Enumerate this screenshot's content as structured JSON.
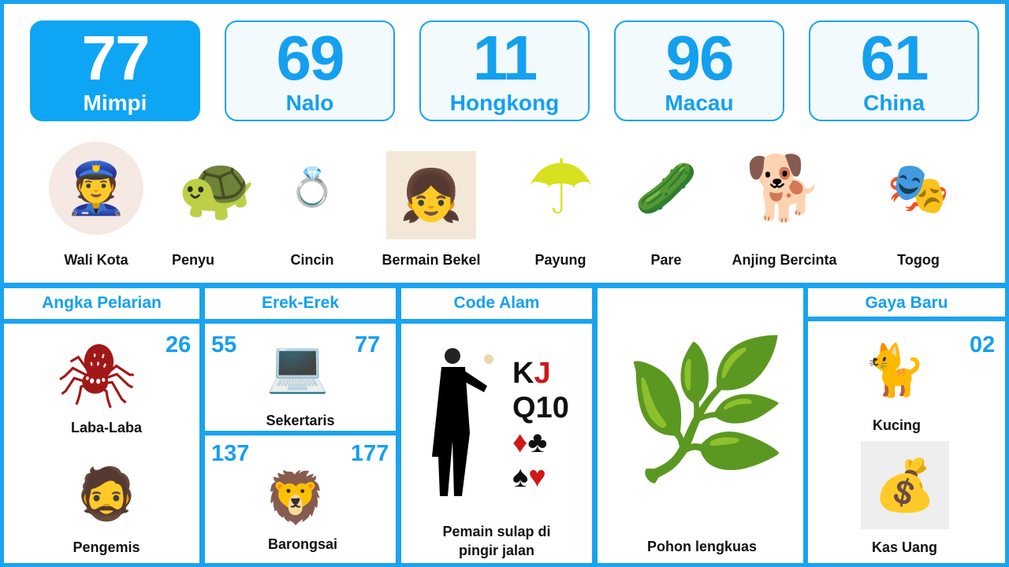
{
  "colors": {
    "accent": "#1aa3f0",
    "active_card": "#0ea5f5"
  },
  "cards": [
    {
      "number": "77",
      "label": "Mimpi",
      "active": true
    },
    {
      "number": "69",
      "label": "Nalo"
    },
    {
      "number": "11",
      "label": "Hongkong"
    },
    {
      "number": "96",
      "label": "Macau"
    },
    {
      "number": "61",
      "label": "China"
    }
  ],
  "dream_items": [
    {
      "label": "Wali Kota",
      "icon": "mayor-portrait",
      "glyph": "👮"
    },
    {
      "label": "Penyu",
      "icon": "turtle",
      "glyph": "🐢"
    },
    {
      "label": "Cincin",
      "icon": "rings",
      "glyph": "💍"
    },
    {
      "label": "Bermain Bekel",
      "icon": "children-playing",
      "glyph": "👧"
    },
    {
      "label": "Payung",
      "icon": "umbrella",
      "glyph": "☂"
    },
    {
      "label": "Pare",
      "icon": "bitter-melon",
      "glyph": "🥒"
    },
    {
      "label": "Anjing Bercinta",
      "icon": "dogs",
      "glyph": "🐕"
    },
    {
      "label": "Togog",
      "icon": "wayang-togog",
      "glyph": "🎭"
    }
  ],
  "angka_pelarian": {
    "title": "Angka Pelarian",
    "number": "26",
    "items": [
      {
        "label": "Laba-Laba",
        "glyph": "🕷"
      },
      {
        "label": "Pengemis",
        "glyph": "🧔"
      }
    ]
  },
  "erek_erek": {
    "title": "Erek-Erek",
    "rows": [
      {
        "left": "55",
        "right": "77",
        "label": "Sekertaris",
        "glyph": "💻"
      },
      {
        "left": "137",
        "right": "177",
        "label": "Barongsai",
        "glyph": "🦁"
      }
    ]
  },
  "code_alam": {
    "title": "Code Alam",
    "label_line1": "Pemain sulap di",
    "label_line2": "pingir jalan",
    "cards_text": [
      "K",
      "J",
      "Q",
      "10"
    ],
    "suits": [
      "♦",
      "♣",
      "♠",
      "♥"
    ]
  },
  "pohon": {
    "label": "Pohon lengkuas",
    "glyph": "🌿"
  },
  "gaya_baru": {
    "title": "Gaya Baru",
    "number": "02",
    "items": [
      {
        "label": "Kucing",
        "glyph": "🐈"
      },
      {
        "label": "Kas Uang",
        "glyph": "💰"
      }
    ]
  }
}
